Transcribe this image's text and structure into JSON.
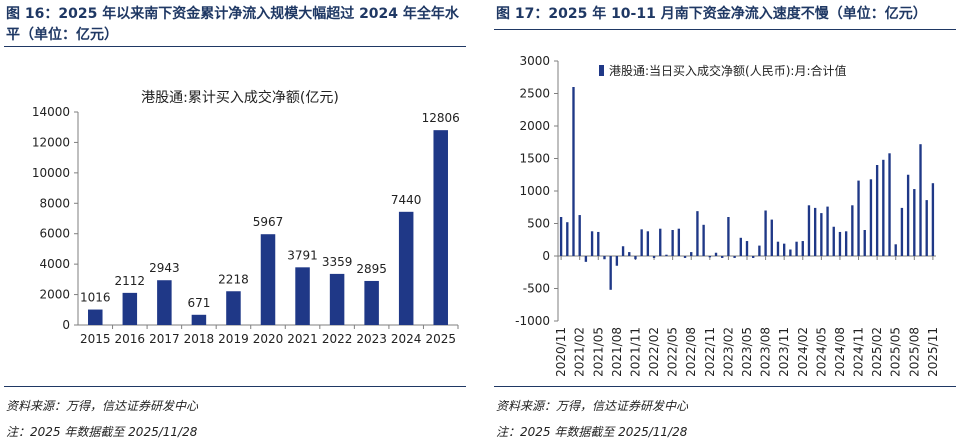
{
  "charts": [
    {
      "figure_title": "图 16：2025 年以来南下资金累计净流入规模大幅超过 2024 年全年水平（单位：亿元）",
      "source": "资料来源：万得，信达证券研发中心",
      "note": "注：2025 年数据截至 2025/11/28",
      "colors": {
        "bar": "#1f3887",
        "axis": "#7f7f7f",
        "title": "#1f3864"
      }
    },
    {
      "figure_title": "图 17：2025 年 10-11 月南下资金净流入速度不慢（单位：亿元）",
      "source": "资料来源：万得，信达证券研发中心",
      "note": "注：2025 年数据截至 2025/11/28",
      "colors": {
        "bar": "#1f3887",
        "axis": "#7f7f7f",
        "title": "#1f3864"
      }
    }
  ],
  "chart_data": [
    {
      "type": "bar",
      "title": "港股通:累计买入成交净额(亿元)",
      "categories": [
        "2015",
        "2016",
        "2017",
        "2018",
        "2019",
        "2020",
        "2021",
        "2022",
        "2023",
        "2024",
        "2025"
      ],
      "values": [
        1016,
        2112,
        2943,
        671,
        2218,
        5967,
        3791,
        3359,
        2895,
        7440,
        12806
      ],
      "data_labels": [
        "1016",
        "2112",
        "2943",
        "671",
        "2218",
        "5967",
        "3791",
        "3359",
        "2895",
        "7440",
        "12806"
      ],
      "xlabel": "",
      "ylabel": "",
      "ylim": [
        0,
        14000
      ],
      "yticks": [
        0,
        2000,
        4000,
        6000,
        8000,
        10000,
        12000,
        14000
      ],
      "ytick_labels": [
        "0",
        "2000",
        "4000",
        "6000",
        "8000",
        "10000",
        "12000",
        "14000"
      ],
      "grid": false
    },
    {
      "type": "bar",
      "legend": [
        "港股通:当日买入成交净额(人民币):月:合计值"
      ],
      "legend_position": "top-left",
      "series": [
        {
          "name": "港股通:当日买入成交净额(人民币):月:合计值",
          "values": [
            600,
            520,
            2600,
            630,
            -90,
            380,
            370,
            -50,
            -520,
            -150,
            150,
            60,
            -50,
            410,
            380,
            -30,
            420,
            20,
            400,
            420,
            -30,
            60,
            690,
            480,
            -20,
            50,
            -30,
            600,
            -30,
            280,
            230,
            -30,
            160,
            700,
            560,
            220,
            190,
            100,
            220,
            230,
            780,
            740,
            660,
            760,
            450,
            370,
            380,
            780,
            1160,
            400,
            1180,
            1400,
            1480,
            1580,
            180,
            740,
            1250,
            1030,
            1720,
            860,
            1120
          ]
        }
      ],
      "categories": [
        "2020/11",
        "2020/12",
        "2021/01",
        "2021/02",
        "2021/03",
        "2021/04",
        "2021/05",
        "2021/06",
        "2021/07",
        "2021/08",
        "2021/09",
        "2021/10",
        "2021/11",
        "2021/12",
        "2022/01",
        "2022/02",
        "2022/03",
        "2022/04",
        "2022/05",
        "2022/06",
        "2022/07",
        "2022/08",
        "2022/09",
        "2022/10",
        "2022/11",
        "2022/12",
        "2023/01",
        "2023/02",
        "2023/03",
        "2023/04",
        "2023/05",
        "2023/06",
        "2023/07",
        "2023/08",
        "2023/09",
        "2023/10",
        "2023/11",
        "2023/12",
        "2024/01",
        "2024/02",
        "2024/03",
        "2024/04",
        "2024/05",
        "2024/06",
        "2024/07",
        "2024/08",
        "2024/09",
        "2024/10",
        "2024/11",
        "2024/12",
        "2025/01",
        "2025/02",
        "2025/03",
        "2025/04",
        "2025/05",
        "2025/06",
        "2025/07",
        "2025/08",
        "2025/09",
        "2025/10",
        "2025/11"
      ],
      "xtick_labels": [
        "2020/11",
        "2021/02",
        "2021/05",
        "2021/08",
        "2021/11",
        "2022/02",
        "2022/05",
        "2022/08",
        "2022/11",
        "2023/02",
        "2023/05",
        "2023/08",
        "2023/11",
        "2024/02",
        "2024/05",
        "2024/08",
        "2024/11",
        "2025/02",
        "2025/05",
        "2025/08",
        "2025/11"
      ],
      "ylim": [
        -1000,
        3000
      ],
      "yticks": [
        -1000,
        -500,
        0,
        500,
        1000,
        1500,
        2000,
        2500,
        3000
      ],
      "ytick_labels": [
        "-1000",
        "-500",
        "0",
        "500",
        "1000",
        "1500",
        "2000",
        "2500",
        "3000"
      ],
      "grid": false
    }
  ]
}
